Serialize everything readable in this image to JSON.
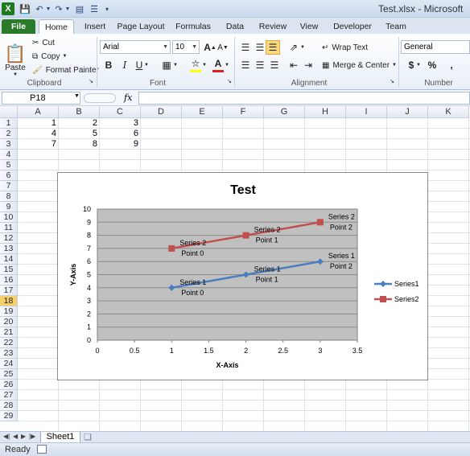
{
  "window": {
    "title": "Test.xlsx - Microsoft"
  },
  "tabs": [
    "File",
    "Home",
    "Insert",
    "Page Layout",
    "Formulas",
    "Data",
    "Review",
    "View",
    "Developer",
    "Team"
  ],
  "ribbon": {
    "clipboard": {
      "label": "Clipboard",
      "paste": "Paste",
      "cut": "Cut",
      "copy": "Copy",
      "format_painter": "Format Painter"
    },
    "font": {
      "label": "Font",
      "font_name": "Arial",
      "font_size": "10",
      "bold": "B",
      "italic": "I",
      "underline": "U",
      "grow": "A",
      "shrink": "A"
    },
    "alignment": {
      "label": "Alignment",
      "wrap_text": "Wrap Text",
      "merge_center": "Merge & Center"
    },
    "number": {
      "label": "Number",
      "format": "General",
      "currency": "$",
      "percent": "%",
      "comma": ","
    }
  },
  "formula_bar": {
    "name_box": "P18",
    "fx": "fx",
    "value": ""
  },
  "grid": {
    "columns": [
      "A",
      "B",
      "C",
      "D",
      "E",
      "F",
      "G",
      "H",
      "I",
      "J",
      "K"
    ],
    "rows": [
      "1",
      "2",
      "3",
      "4",
      "5",
      "6",
      "7",
      "8",
      "9",
      "10",
      "11",
      "12",
      "13",
      "14",
      "15",
      "16",
      "17",
      "18",
      "19",
      "20",
      "21",
      "22",
      "23",
      "24",
      "25",
      "26",
      "27",
      "28",
      "29"
    ],
    "selected_row": "18",
    "cells": [
      [
        "1",
        "2",
        "3"
      ],
      [
        "4",
        "5",
        "6"
      ],
      [
        "7",
        "8",
        "9"
      ]
    ]
  },
  "sheets": {
    "active": "Sheet1"
  },
  "status": {
    "text": "Ready"
  },
  "chart_data": {
    "type": "scatter",
    "title": "Test",
    "xlabel": "X-Axis",
    "ylabel": "Y-Axis",
    "xlim": [
      0,
      3.5
    ],
    "ylim": [
      0,
      10
    ],
    "xticks": [
      "0",
      "0.5",
      "1",
      "1.5",
      "2",
      "2.5",
      "3",
      "3.5"
    ],
    "yticks": [
      "0",
      "1",
      "2",
      "3",
      "4",
      "5",
      "6",
      "7",
      "8",
      "9",
      "10"
    ],
    "grid": true,
    "legend": "right",
    "series": [
      {
        "name": "Series1",
        "color": "#4a7ebf",
        "marker": "diamond",
        "points": [
          {
            "x": 1,
            "y": 4,
            "label1": "Series 1",
            "label2": "Point 0"
          },
          {
            "x": 2,
            "y": 5,
            "label1": "Series 1",
            "label2": "Point 1"
          },
          {
            "x": 3,
            "y": 6,
            "label1": "Series 1",
            "label2": "Point 2"
          }
        ]
      },
      {
        "name": "Series2",
        "color": "#c0504d",
        "marker": "square",
        "points": [
          {
            "x": 1,
            "y": 7,
            "label1": "Series 2",
            "label2": "Point 0"
          },
          {
            "x": 2,
            "y": 8,
            "label1": "Series 2",
            "label2": "Point 1"
          },
          {
            "x": 3,
            "y": 9,
            "label1": "Series 2",
            "label2": "Point 2"
          }
        ]
      }
    ]
  }
}
